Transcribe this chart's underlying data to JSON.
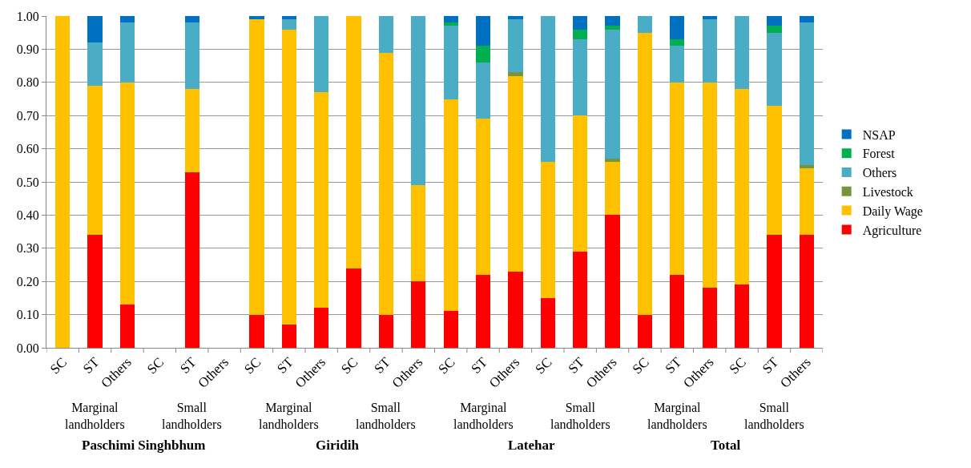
{
  "chart_data": {
    "type": "bar",
    "stacked": true,
    "categories": [
      "SC",
      "ST",
      "Others",
      "SC",
      "ST",
      "Others",
      "SC",
      "ST",
      "Others",
      "SC",
      "ST",
      "Others",
      "SC",
      "ST",
      "Others",
      "SC",
      "ST",
      "Others",
      "SC",
      "ST",
      "Others",
      "SC",
      "ST",
      "Others"
    ],
    "series": [
      {
        "name": "Agriculture",
        "color": "#ff0000",
        "values": [
          0,
          0.34,
          0.13,
          null,
          0.53,
          null,
          0.1,
          0.07,
          0.12,
          0.24,
          0.1,
          0.2,
          0.11,
          0.22,
          0.23,
          0.15,
          0.29,
          0.4,
          0.1,
          0.22,
          0.18,
          0.19,
          0.34,
          0.34
        ]
      },
      {
        "name": "Daily Wage",
        "color": "#ffc000",
        "values": [
          1.0,
          0.45,
          0.67,
          null,
          0.25,
          null,
          0.89,
          0.89,
          0.65,
          0.76,
          0.79,
          0.29,
          0.64,
          0.47,
          0.59,
          0.41,
          0.41,
          0.16,
          0.85,
          0.58,
          0.62,
          0.59,
          0.39,
          0.2
        ]
      },
      {
        "name": "Livestock",
        "color": "#77933c",
        "values": [
          0,
          0,
          0,
          null,
          0,
          null,
          0,
          0,
          0,
          0,
          0,
          0,
          0,
          0,
          0.01,
          0,
          0,
          0.01,
          0,
          0,
          0,
          0,
          0,
          0.01
        ]
      },
      {
        "name": "Others",
        "color": "#4bacc6",
        "values": [
          0,
          0.13,
          0.18,
          null,
          0.2,
          null,
          0,
          0.03,
          0.23,
          0,
          0.11,
          0.51,
          0.22,
          0.17,
          0.16,
          0.44,
          0.23,
          0.39,
          0.05,
          0.11,
          0.19,
          0.22,
          0.22,
          0.43
        ]
      },
      {
        "name": "Forest",
        "color": "#00b050",
        "values": [
          0,
          0,
          0,
          null,
          0,
          null,
          0,
          0,
          0,
          0,
          0,
          0,
          0.01,
          0.05,
          0,
          0,
          0.03,
          0.01,
          0,
          0.02,
          0,
          0,
          0.02,
          0
        ]
      },
      {
        "name": "NSAP",
        "color": "#0070c0",
        "values": [
          0,
          0.08,
          0.02,
          null,
          0.02,
          null,
          0.01,
          0.01,
          0,
          0,
          0,
          0,
          0.02,
          0.09,
          0.01,
          0,
          0.04,
          0.03,
          0,
          0.07,
          0.01,
          0,
          0.03,
          0.02
        ]
      }
    ],
    "ylim": [
      0,
      1
    ],
    "yticks": [
      {
        "value": 0,
        "label": "0.00"
      },
      {
        "value": 0.1,
        "label": "0.10"
      },
      {
        "value": 0.2,
        "label": "0.20"
      },
      {
        "value": 0.3,
        "label": "0.30"
      },
      {
        "value": 0.4,
        "label": "0.40"
      },
      {
        "value": 0.5,
        "label": "0.50"
      },
      {
        "value": 0.6,
        "label": "0.60"
      },
      {
        "value": 0.7,
        "label": "0.70"
      },
      {
        "value": 0.8,
        "label": "0.80"
      },
      {
        "value": 0.9,
        "label": "0.90"
      },
      {
        "value": 1,
        "label": "1.00"
      }
    ],
    "grid": "y",
    "legend": "right",
    "annotations": [
      "Marginal landholders",
      "Small landholders",
      "Marginal landholders",
      "Small landholders",
      "Marginal landholders",
      "Small landholders",
      "Marginal landholders",
      "Small landholders",
      "Paschimi Singhbhum",
      "Giridih",
      "Latehar",
      "Total"
    ]
  }
}
